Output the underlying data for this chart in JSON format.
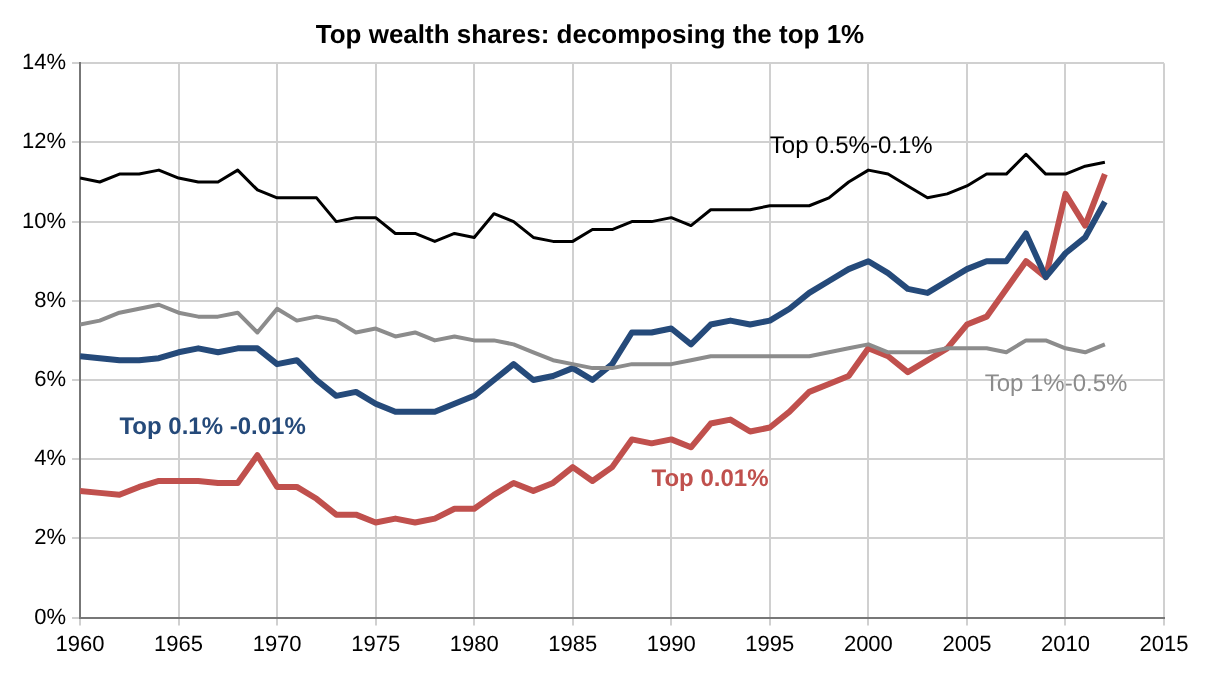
{
  "chart_data": {
    "type": "line",
    "title": "Top wealth shares: decomposing the top 1%",
    "x": [
      1960,
      1961,
      1962,
      1963,
      1964,
      1965,
      1966,
      1967,
      1968,
      1969,
      1970,
      1971,
      1972,
      1973,
      1974,
      1975,
      1976,
      1977,
      1978,
      1979,
      1980,
      1981,
      1982,
      1983,
      1984,
      1985,
      1986,
      1987,
      1988,
      1989,
      1990,
      1991,
      1992,
      1993,
      1994,
      1995,
      1996,
      1997,
      1998,
      1999,
      2000,
      2001,
      2002,
      2003,
      2004,
      2005,
      2006,
      2007,
      2008,
      2009,
      2010,
      2011,
      2012
    ],
    "series": [
      {
        "name": "Top 0.5%-0.1%",
        "color": "#000000",
        "values": [
          11.1,
          11.0,
          11.2,
          11.2,
          11.3,
          11.1,
          11.0,
          11.0,
          11.3,
          10.8,
          10.6,
          10.6,
          10.6,
          10.0,
          10.1,
          10.1,
          9.7,
          9.7,
          9.5,
          9.7,
          9.6,
          10.2,
          10.0,
          9.6,
          9.5,
          9.5,
          9.8,
          9.8,
          10.0,
          10.0,
          10.1,
          9.9,
          10.3,
          10.3,
          10.3,
          10.4,
          10.4,
          10.4,
          10.6,
          11.0,
          11.3,
          11.2,
          10.9,
          10.6,
          10.7,
          10.9,
          11.2,
          11.2,
          11.7,
          11.2,
          11.2,
          11.4,
          11.5
        ]
      },
      {
        "name": "Top 1%-0.5%",
        "color": "#8c8c8c",
        "values": [
          7.4,
          7.5,
          7.7,
          7.8,
          7.9,
          7.7,
          7.6,
          7.6,
          7.7,
          7.2,
          7.8,
          7.5,
          7.6,
          7.5,
          7.2,
          7.3,
          7.1,
          7.2,
          7.0,
          7.1,
          7.0,
          7.0,
          6.9,
          6.7,
          6.5,
          6.4,
          6.3,
          6.3,
          6.4,
          6.4,
          6.4,
          6.5,
          6.6,
          6.6,
          6.6,
          6.6,
          6.6,
          6.6,
          6.7,
          6.8,
          6.9,
          6.7,
          6.7,
          6.7,
          6.8,
          6.8,
          6.8,
          6.7,
          7.0,
          7.0,
          6.8,
          6.7,
          6.9
        ]
      },
      {
        "name": "Top 0.1% -0.01%",
        "color": "#254a7a",
        "values": [
          6.6,
          6.55,
          6.5,
          6.5,
          6.55,
          6.7,
          6.8,
          6.7,
          6.8,
          6.8,
          6.4,
          6.5,
          6.0,
          5.6,
          5.7,
          5.4,
          5.2,
          5.2,
          5.2,
          5.4,
          5.6,
          6.0,
          6.4,
          6.0,
          6.1,
          6.3,
          6.0,
          6.4,
          7.2,
          7.2,
          7.3,
          6.9,
          7.4,
          7.5,
          7.4,
          7.5,
          7.8,
          8.2,
          8.5,
          8.8,
          9.0,
          8.7,
          8.3,
          8.2,
          8.5,
          8.8,
          9.0,
          9.0,
          9.7,
          8.6,
          9.2,
          9.6,
          10.5
        ]
      },
      {
        "name": "Top 0.01%",
        "color": "#c0504d",
        "values": [
          3.2,
          3.15,
          3.1,
          3.3,
          3.45,
          3.45,
          3.45,
          3.4,
          3.4,
          4.1,
          3.3,
          3.3,
          3.0,
          2.6,
          2.6,
          2.4,
          2.5,
          2.4,
          2.5,
          2.75,
          2.75,
          3.1,
          3.4,
          3.2,
          3.4,
          3.8,
          3.45,
          3.8,
          4.5,
          4.4,
          4.5,
          4.3,
          4.9,
          5.0,
          4.7,
          4.8,
          5.2,
          5.7,
          5.9,
          6.1,
          6.8,
          6.6,
          6.2,
          6.5,
          6.8,
          7.4,
          7.6,
          8.3,
          9.0,
          8.6,
          10.7,
          9.9,
          11.2
        ]
      }
    ],
    "xlim": [
      1960,
      2015
    ],
    "xticks": [
      1960,
      1965,
      1970,
      1975,
      1980,
      1985,
      1990,
      1995,
      2000,
      2005,
      2010,
      2015
    ],
    "ylim": [
      0,
      14
    ],
    "yticks": [
      {
        "value": 0,
        "label": "0%"
      },
      {
        "value": 2,
        "label": "2%"
      },
      {
        "value": 4,
        "label": "4%"
      },
      {
        "value": 6,
        "label": "6%"
      },
      {
        "value": 8,
        "label": "8%"
      },
      {
        "value": 10,
        "label": "10%"
      },
      {
        "value": 12,
        "label": "12%"
      },
      {
        "value": 14,
        "label": "14%"
      }
    ],
    "grid": true,
    "legend": false,
    "marker": "none",
    "line_style": "solid"
  }
}
